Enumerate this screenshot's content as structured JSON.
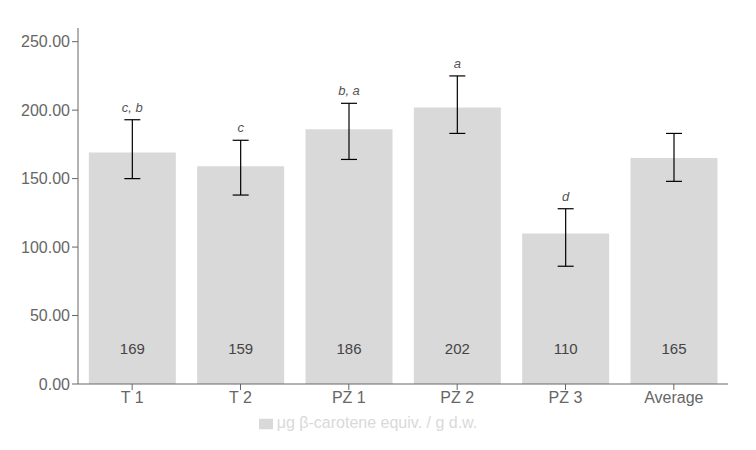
{
  "chart_data": {
    "type": "bar",
    "categories": [
      "T 1",
      "T 2",
      "PZ 1",
      "PZ 2",
      "PZ 3",
      "Average"
    ],
    "series": [
      {
        "name": "μg β-carotene equiv. / g d.w.",
        "color": "#d9d9d9",
        "values": [
          169,
          159,
          186,
          202,
          110,
          165
        ],
        "error_upper": [
          24,
          19,
          19,
          23,
          18,
          18
        ],
        "error_lower": [
          19,
          21,
          22,
          19,
          24,
          17
        ],
        "significance": [
          "c, b",
          "c",
          "b, a",
          "a",
          "d",
          null
        ]
      }
    ],
    "ylim": [
      0,
      260
    ],
    "yticks": [
      {
        "value": 0,
        "label": "0.00"
      },
      {
        "value": 50,
        "label": "50.00"
      },
      {
        "value": 100,
        "label": "100.00"
      },
      {
        "value": 150,
        "label": "150.00"
      },
      {
        "value": 200,
        "label": "200.00"
      },
      {
        "value": 250,
        "label": "250.00"
      }
    ],
    "data_labels": true,
    "grid": false,
    "legend": "bottom"
  }
}
